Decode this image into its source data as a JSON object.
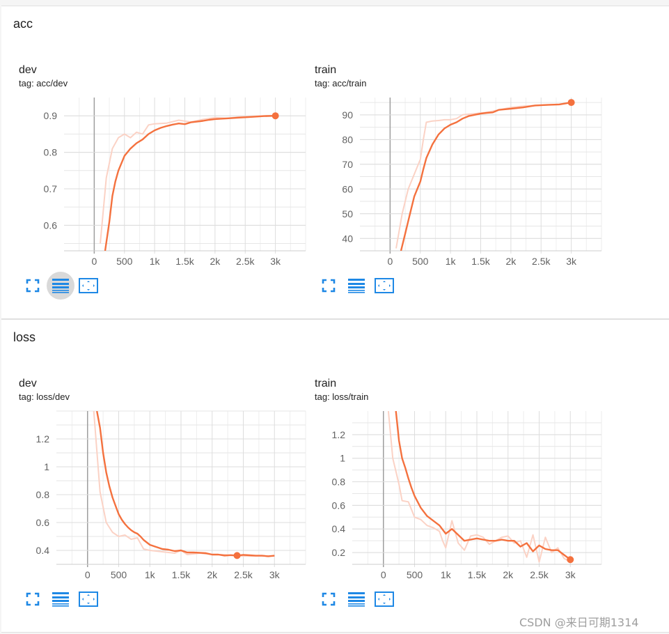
{
  "sections": [
    {
      "title": "acc",
      "cards": [
        {
          "title": "dev",
          "tag": "tag: acc/dev"
        },
        {
          "title": "train",
          "tag": "tag: acc/train"
        }
      ]
    },
    {
      "title": "loss",
      "cards": [
        {
          "title": "dev",
          "tag": "tag: loss/dev"
        },
        {
          "title": "train",
          "tag": "tag: loss/train"
        }
      ]
    }
  ],
  "toolbar": {
    "icons": [
      "fullscreen-icon",
      "toggle-y-log-icon",
      "fit-domain-icon"
    ],
    "active_in_first_card": "toggle-y-log-icon"
  },
  "watermark": "CSDN @来日可期1314",
  "colors": {
    "smoothed": "#f4713e",
    "raw": "#fbd2c5",
    "grid": "#dddddd",
    "zero_axis": "#9e9e9e",
    "icon": "#1e88e5"
  },
  "chart_data": [
    {
      "type": "line",
      "title": "dev",
      "subtitle": "tag: acc/dev",
      "xlim": [
        -500,
        3500
      ],
      "ylim": [
        0.53,
        0.95
      ],
      "x_ticks": [
        0,
        500,
        1000,
        1500,
        2000,
        2500,
        3000
      ],
      "x_tick_labels": [
        "0",
        "500",
        "1k",
        "1.5k",
        "2k",
        "2.5k",
        "3k"
      ],
      "y_ticks": [
        0.6,
        0.7,
        0.8,
        0.9
      ],
      "y_tick_labels": [
        "0.6",
        "0.7",
        "0.8",
        "0.9"
      ],
      "grid": true,
      "series": [
        {
          "role": "raw",
          "x": [
            100,
            200,
            300,
            400,
            500,
            600,
            700,
            800,
            900,
            1000,
            1200,
            1400,
            1600,
            1800,
            2000,
            2200,
            2400,
            2600,
            2800,
            3000
          ],
          "y": [
            0.55,
            0.73,
            0.81,
            0.84,
            0.85,
            0.84,
            0.855,
            0.85,
            0.875,
            0.878,
            0.88,
            0.888,
            0.883,
            0.89,
            0.895,
            0.893,
            0.897,
            0.898,
            0.9,
            0.901
          ]
        },
        {
          "role": "smoothed",
          "x": [
            180,
            250,
            300,
            350,
            400,
            500,
            600,
            700,
            800,
            900,
            1000,
            1100,
            1200,
            1300,
            1400,
            1500,
            1600,
            1700,
            1800,
            1900,
            2000,
            2200,
            2400,
            2600,
            2800,
            3000
          ],
          "y": [
            0.53,
            0.61,
            0.68,
            0.72,
            0.75,
            0.79,
            0.81,
            0.825,
            0.835,
            0.85,
            0.86,
            0.867,
            0.872,
            0.876,
            0.879,
            0.877,
            0.882,
            0.884,
            0.886,
            0.889,
            0.891,
            0.893,
            0.895,
            0.897,
            0.899,
            0.9
          ]
        }
      ],
      "last_point": {
        "x": 3000,
        "y": 0.9
      }
    },
    {
      "type": "line",
      "title": "train",
      "subtitle": "tag: acc/train",
      "xlim": [
        -500,
        3500
      ],
      "ylim": [
        35,
        97
      ],
      "x_ticks": [
        0,
        500,
        1000,
        1500,
        2000,
        2500,
        3000
      ],
      "x_tick_labels": [
        "0",
        "500",
        "1k",
        "1.5k",
        "2k",
        "2.5k",
        "3k"
      ],
      "y_ticks": [
        40,
        50,
        60,
        70,
        80,
        90
      ],
      "y_tick_labels": [
        "40",
        "50",
        "60",
        "70",
        "80",
        "90"
      ],
      "grid": true,
      "series": [
        {
          "role": "raw",
          "x": [
            100,
            200,
            300,
            400,
            500,
            550,
            600,
            700,
            800,
            900,
            1000,
            1100,
            1200,
            1400,
            1600,
            1800,
            2000,
            2200,
            2400,
            2600,
            2800,
            3000
          ],
          "y": [
            36,
            50,
            60,
            66,
            72,
            80,
            87,
            87.5,
            87.7,
            88,
            88,
            88.5,
            90,
            90.5,
            91,
            92,
            93,
            93.5,
            93.8,
            94,
            94.3,
            95
          ]
        },
        {
          "role": "smoothed",
          "x": [
            180,
            250,
            300,
            350,
            400,
            450,
            500,
            550,
            600,
            700,
            800,
            900,
            1000,
            1100,
            1200,
            1300,
            1400,
            1500,
            1600,
            1700,
            1800,
            2000,
            2200,
            2400,
            2600,
            2800,
            3000
          ],
          "y": [
            35,
            42,
            47,
            52,
            57,
            60,
            63,
            68,
            72.5,
            78,
            82,
            84.5,
            86,
            87,
            88.5,
            89.5,
            90,
            90.5,
            90.8,
            91,
            92,
            92.5,
            93,
            93.8,
            94,
            94.2,
            95
          ]
        }
      ],
      "last_point": {
        "x": 3000,
        "y": 95
      }
    },
    {
      "type": "line",
      "title": "dev",
      "subtitle": "tag: loss/dev",
      "xlim": [
        -500,
        3500
      ],
      "ylim": [
        0.3,
        1.4
      ],
      "x_ticks": [
        0,
        500,
        1000,
        1500,
        2000,
        2500,
        3000
      ],
      "x_tick_labels": [
        "0",
        "500",
        "1k",
        "1.5k",
        "2k",
        "2.5k",
        "3k"
      ],
      "y_ticks": [
        0.4,
        0.6,
        0.8,
        1,
        1.2
      ],
      "y_tick_labels": [
        "0.4",
        "0.6",
        "0.8",
        "1",
        "1.2"
      ],
      "grid": true,
      "series": [
        {
          "role": "raw",
          "x": [
            100,
            200,
            300,
            400,
            500,
            600,
            700,
            800,
            900,
            1000,
            1200,
            1400,
            1500,
            1600,
            1800,
            2000,
            2200,
            2400,
            2600,
            2800,
            3000
          ],
          "y": [
            1.4,
            0.82,
            0.6,
            0.53,
            0.5,
            0.51,
            0.48,
            0.49,
            0.41,
            0.4,
            0.39,
            0.38,
            0.4,
            0.37,
            0.38,
            0.37,
            0.37,
            0.36,
            0.36,
            0.36,
            0.36
          ]
        },
        {
          "role": "smoothed",
          "x": [
            150,
            200,
            250,
            300,
            350,
            400,
            450,
            500,
            550,
            600,
            650,
            700,
            750,
            800,
            850,
            900,
            1000,
            1100,
            1200,
            1300,
            1400,
            1500,
            1600,
            1700,
            1800,
            1900,
            2000,
            2100,
            2200,
            2300,
            2400,
            2500,
            2600,
            2700,
            2800,
            2900,
            3000
          ],
          "y": [
            1.4,
            1.28,
            1.1,
            0.96,
            0.86,
            0.78,
            0.72,
            0.66,
            0.62,
            0.59,
            0.565,
            0.545,
            0.53,
            0.52,
            0.5,
            0.475,
            0.44,
            0.425,
            0.41,
            0.405,
            0.395,
            0.4,
            0.385,
            0.385,
            0.383,
            0.38,
            0.37,
            0.37,
            0.363,
            0.366,
            0.363,
            0.368,
            0.365,
            0.362,
            0.362,
            0.358,
            0.362
          ]
        }
      ],
      "last_point": {
        "x": 2400,
        "y": 0.363
      }
    },
    {
      "type": "line",
      "title": "train",
      "subtitle": "tag: loss/train",
      "xlim": [
        -500,
        3500
      ],
      "ylim": [
        0.1,
        1.4
      ],
      "x_ticks": [
        0,
        500,
        1000,
        1500,
        2000,
        2500,
        3000
      ],
      "x_tick_labels": [
        "0",
        "500",
        "1k",
        "1.5k",
        "2k",
        "2.5k",
        "3k"
      ],
      "y_ticks": [
        0.2,
        0.4,
        0.6,
        0.8,
        1,
        1.2
      ],
      "y_tick_labels": [
        "0.2",
        "0.4",
        "0.6",
        "0.8",
        "1",
        "1.2"
      ],
      "grid": true,
      "series": [
        {
          "role": "raw",
          "x": [
            80,
            150,
            250,
            300,
            400,
            500,
            600,
            700,
            800,
            900,
            950,
            1000,
            1100,
            1200,
            1300,
            1400,
            1500,
            1600,
            1700,
            1800,
            1900,
            2000,
            2100,
            2200,
            2300,
            2400,
            2500,
            2600,
            2700,
            2800,
            2900,
            3000
          ],
          "y": [
            1.4,
            1.0,
            0.78,
            0.64,
            0.63,
            0.5,
            0.48,
            0.43,
            0.41,
            0.38,
            0.3,
            0.24,
            0.47,
            0.28,
            0.22,
            0.34,
            0.35,
            0.33,
            0.27,
            0.3,
            0.33,
            0.34,
            0.28,
            0.3,
            0.16,
            0.35,
            0.12,
            0.33,
            0.2,
            0.24,
            0.15,
            0.12
          ]
        },
        {
          "role": "smoothed",
          "x": [
            200,
            250,
            300,
            350,
            400,
            450,
            500,
            600,
            700,
            800,
            900,
            1000,
            1100,
            1200,
            1300,
            1400,
            1500,
            1600,
            1700,
            1800,
            1900,
            2000,
            2100,
            2200,
            2300,
            2400,
            2500,
            2600,
            2700,
            2800,
            2900,
            3000
          ],
          "y": [
            1.4,
            1.15,
            1.0,
            0.92,
            0.83,
            0.75,
            0.68,
            0.58,
            0.51,
            0.47,
            0.43,
            0.36,
            0.4,
            0.35,
            0.3,
            0.31,
            0.32,
            0.31,
            0.3,
            0.3,
            0.31,
            0.3,
            0.3,
            0.25,
            0.28,
            0.21,
            0.26,
            0.23,
            0.22,
            0.22,
            0.18,
            0.14
          ]
        }
      ],
      "last_point": {
        "x": 3000,
        "y": 0.14
      }
    }
  ]
}
